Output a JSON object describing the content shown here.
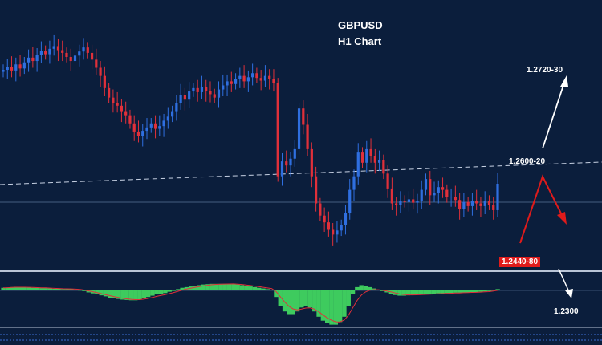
{
  "chart_data": {
    "type": "candlestick",
    "title": "GBPUSD",
    "subtitle": "H1 Chart",
    "xlabel": "",
    "ylabel": "",
    "ylim": [
      1.238,
      1.278
    ],
    "colors": {
      "background": "#0b1e3c",
      "up": "#2f6fe0",
      "down": "#e0303a",
      "macd": "#3ecb5e",
      "signal": "#e0303a"
    },
    "closes": [
      1.2677,
      1.2681,
      1.2676,
      1.2685,
      1.2679,
      1.2688,
      1.2695,
      1.269,
      1.2699,
      1.2705,
      1.27,
      1.2708,
      1.2712,
      1.2706,
      1.2702,
      1.2696,
      1.269,
      1.2698,
      1.2704,
      1.271,
      1.2702,
      1.2692,
      1.268,
      1.2668,
      1.265,
      1.2636,
      1.2628,
      1.2624,
      1.2616,
      1.261,
      1.2598,
      1.2586,
      1.258,
      1.2587,
      1.2592,
      1.2598,
      1.259,
      1.2594,
      1.2602,
      1.2608,
      1.2616,
      1.2628,
      1.264,
      1.2633,
      1.2645,
      1.265,
      1.2644,
      1.2652,
      1.2646,
      1.2641,
      1.2636,
      1.2648,
      1.2654,
      1.266,
      1.2656,
      1.2664,
      1.2668,
      1.266,
      1.2666,
      1.2672,
      1.2665,
      1.2661,
      1.2668,
      1.2664,
      1.2657,
      1.252,
      1.2542,
      1.2536,
      1.2546,
      1.256,
      1.262,
      1.2596,
      1.256,
      1.252,
      1.248,
      1.2462,
      1.2452,
      1.2441,
      1.2434,
      1.244,
      1.2448,
      1.2466,
      1.25,
      1.252,
      1.2555,
      1.254,
      1.256,
      1.255,
      1.254,
      1.2544,
      1.2524,
      1.2502,
      1.248,
      1.2478,
      1.2484,
      1.2482,
      1.2486,
      1.2481,
      1.2484,
      1.25,
      1.2516,
      1.2492,
      1.2496,
      1.2504,
      1.25,
      1.2489,
      1.249,
      1.2485,
      1.2472,
      1.2482,
      1.2476,
      1.2484,
      1.248,
      1.2476,
      1.2484,
      1.2478,
      1.247,
      1.2509
    ],
    "macd": [
      4,
      4.5,
      5,
      5.5,
      5,
      5,
      4.5,
      4,
      4,
      3.5,
      3.5,
      3,
      2.5,
      2.5,
      2,
      2,
      2,
      1.5,
      0.5,
      -1,
      -3,
      -4.5,
      -6,
      -7.5,
      -9,
      -11,
      -12,
      -13,
      -14,
      -14.5,
      -15,
      -15,
      -14,
      -12,
      -10,
      -8,
      -6,
      -5,
      -4,
      -2,
      0,
      2,
      4,
      5,
      6,
      7,
      8,
      9,
      9.5,
      10,
      10,
      10,
      10,
      10,
      10,
      9,
      8,
      7,
      6,
      5,
      4,
      3,
      2,
      1,
      -10,
      -24,
      -32,
      -36,
      -36,
      -32,
      -26,
      -24,
      -26,
      -32,
      -40,
      -46,
      -50,
      -52,
      -52,
      -48,
      -40,
      -24,
      -6,
      5,
      8,
      7,
      5,
      3,
      1,
      -1,
      -3,
      -5,
      -7,
      -8,
      -8,
      -7.5,
      -7,
      -6.5,
      -6,
      -5.5,
      -5,
      -5,
      -4.5,
      -4.5,
      -4,
      -4,
      -3.5,
      -3.5,
      -3,
      -3,
      -2.5,
      -2.5,
      -2,
      -1.5,
      -1,
      0.5,
      2
    ],
    "levels": [
      {
        "label": "1.2720-30",
        "price": 1.2725
      },
      {
        "label": "1.2600-20",
        "price": 1.261
      },
      {
        "label": "1.2440-80",
        "price": 1.246
      },
      {
        "label": "1.2300",
        "price": 1.23
      }
    ]
  }
}
